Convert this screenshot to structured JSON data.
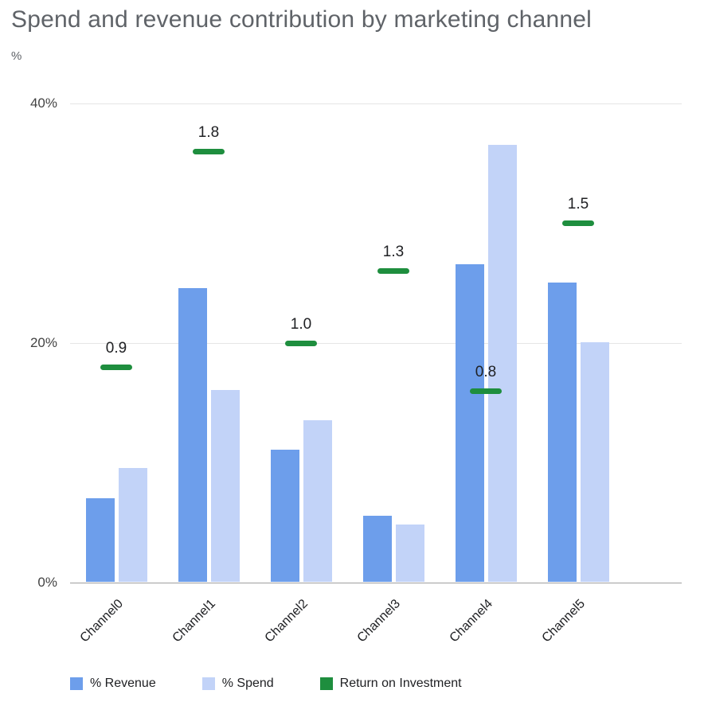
{
  "chart_data": {
    "type": "bar",
    "title": "Spend and revenue contribution by marketing channel",
    "ylabel": "%",
    "xlabel": "",
    "categories": [
      "Channel0",
      "Channel1",
      "Channel2",
      "Channel3",
      "Channel4",
      "Channel5"
    ],
    "series": [
      {
        "name": "% Revenue",
        "type": "bar",
        "color": "#6d9eeb",
        "values": [
          7,
          24.5,
          11,
          5.5,
          26.5,
          25
        ]
      },
      {
        "name": "% Spend",
        "type": "bar",
        "color": "#c2d3f8",
        "values": [
          9.5,
          16,
          13.5,
          4.8,
          36.5,
          20
        ]
      },
      {
        "name": "Return on Investment",
        "type": "dash-marker",
        "color": "#1e8e3e",
        "values": [
          0.9,
          1.8,
          1.0,
          1.3,
          0.8,
          1.5
        ],
        "axis_scale": 20
      }
    ],
    "ylim": [
      0,
      40
    ],
    "yticks": [
      {
        "value": 0,
        "label": "0%"
      },
      {
        "value": 20,
        "label": "20%"
      },
      {
        "value": 40,
        "label": "40%"
      }
    ],
    "grid": true,
    "legend_position": "bottom"
  },
  "colors": {
    "revenue_bar": "#6d9eeb",
    "spend_bar": "#c2d3f8",
    "roi_marker": "#1e8e3e",
    "gridline": "#e6e6e6",
    "baseline": "#9e9e9e",
    "title_text": "#5f6368",
    "label_text": "#202124"
  }
}
